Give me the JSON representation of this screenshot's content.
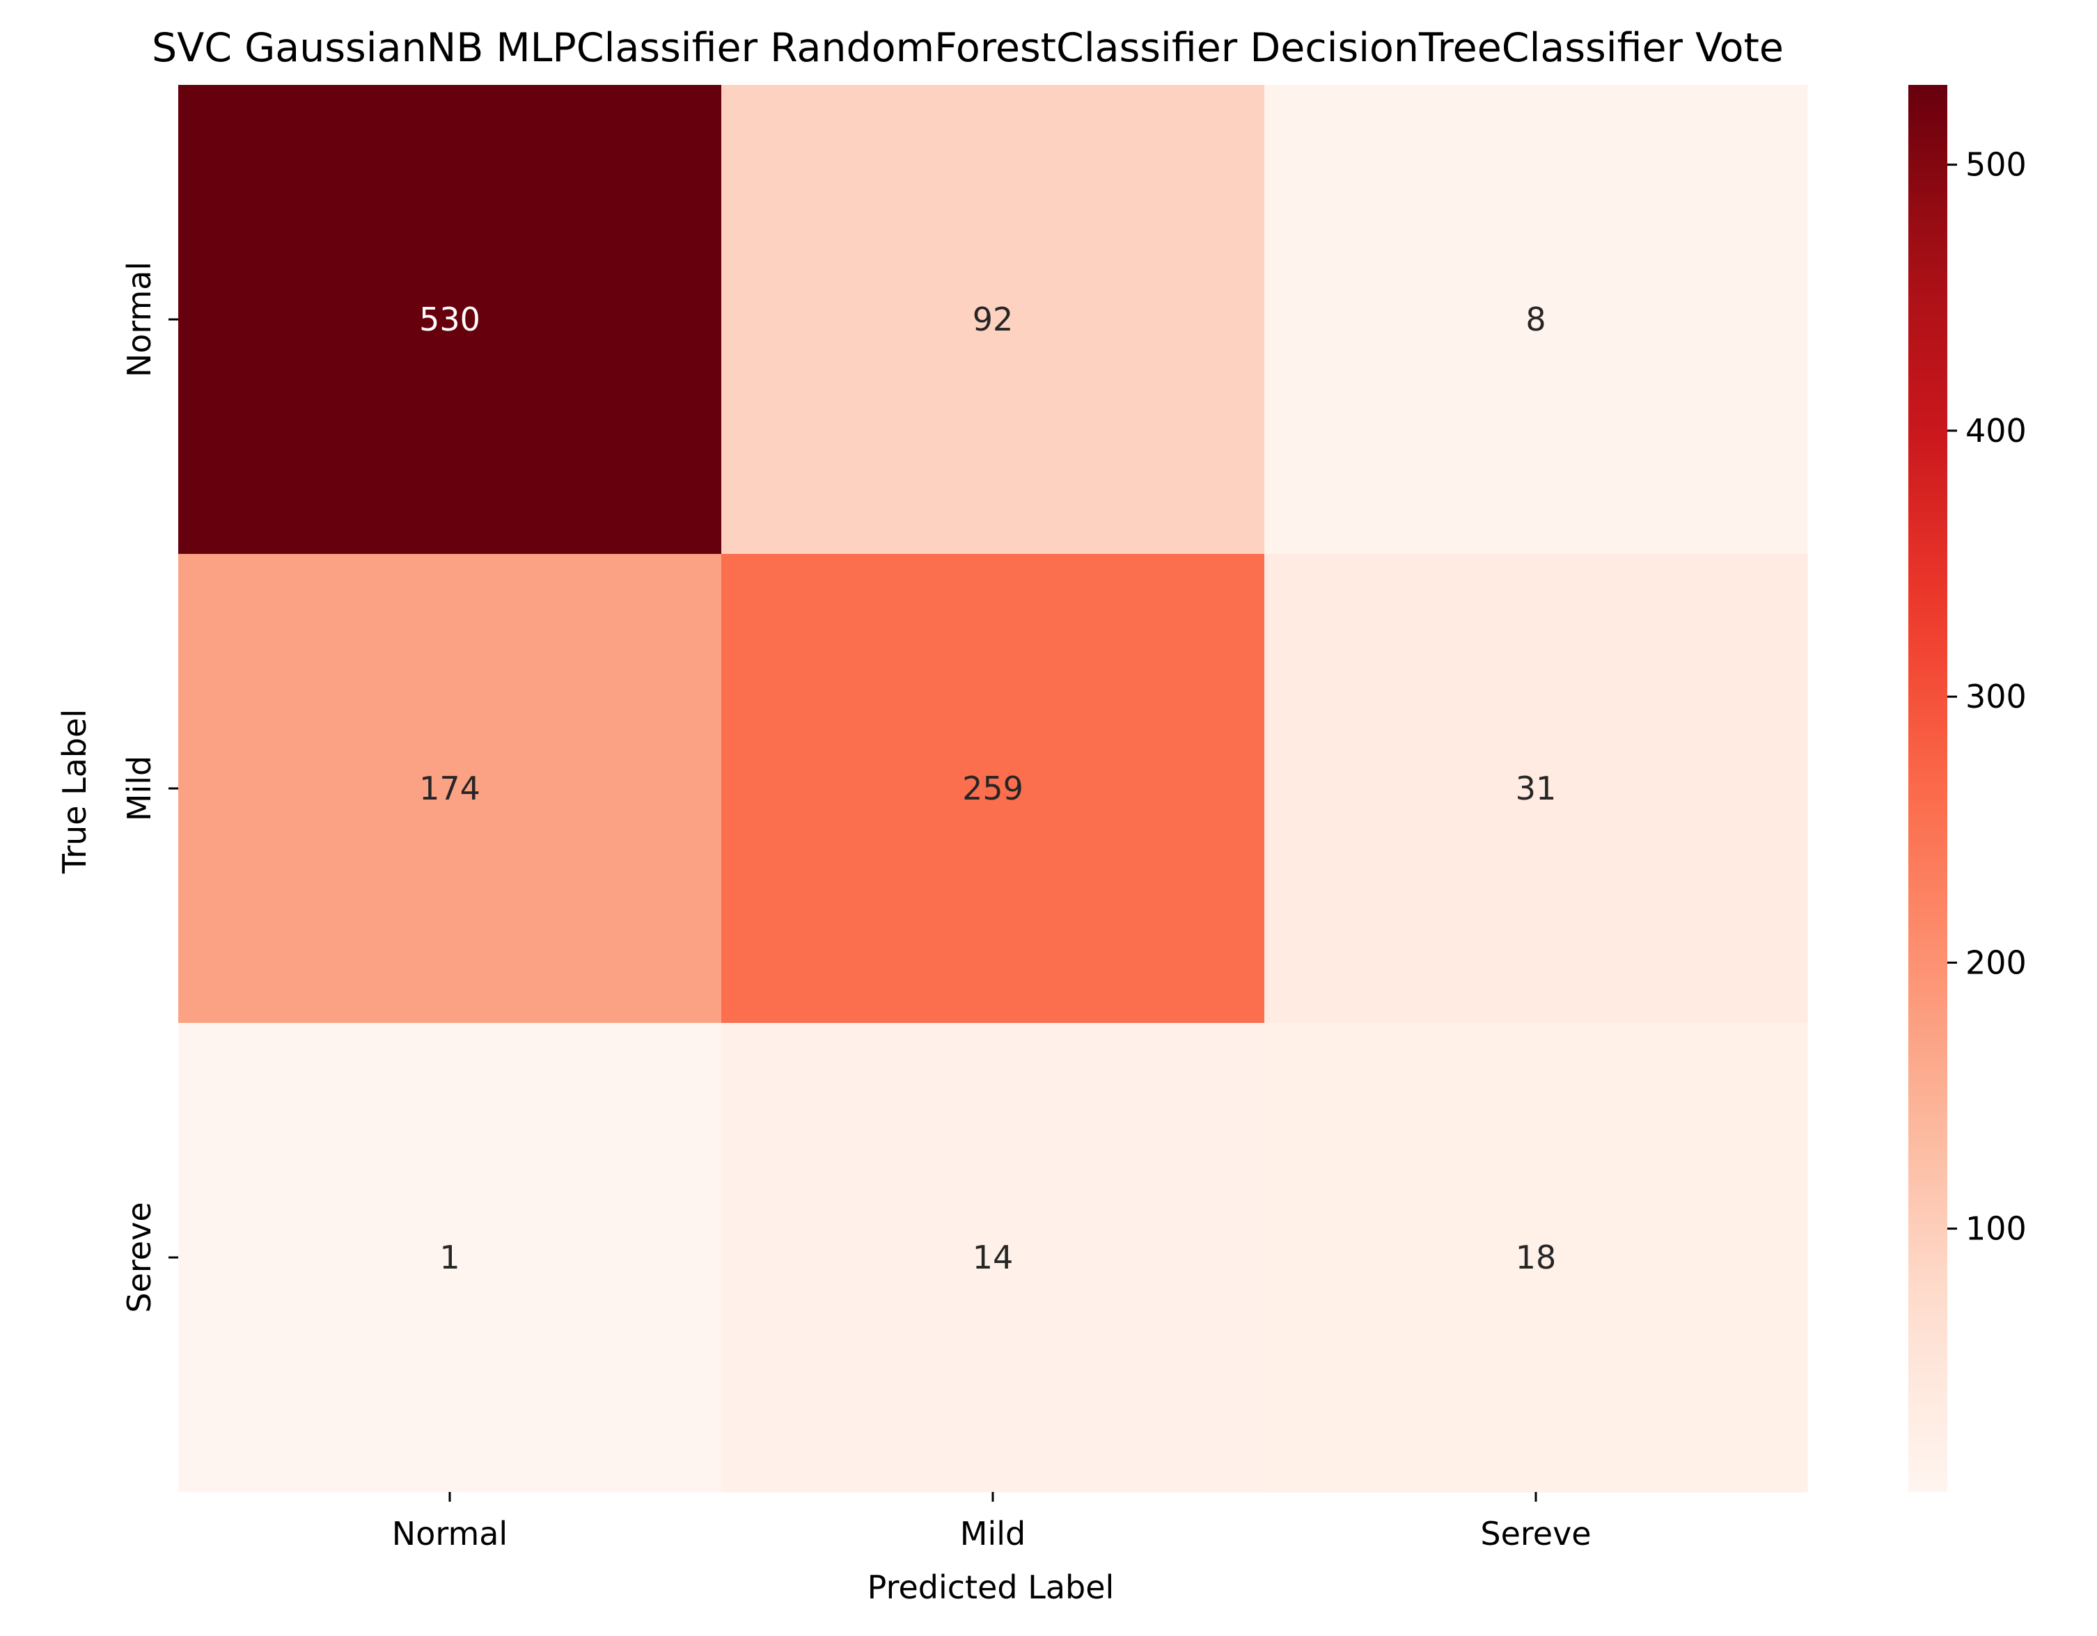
{
  "chart_data": {
    "type": "heatmap",
    "title": "SVC GaussianNB MLPClassifier RandomForestClassifier DecisionTreeClassifier Vote",
    "xlabel": "Predicted Label",
    "ylabel": "True Label",
    "x_categories": [
      "Normal",
      "Mild",
      "Sereve"
    ],
    "y_categories": [
      "Normal",
      "Mild",
      "Sereve"
    ],
    "values": [
      [
        530,
        92,
        8
      ],
      [
        174,
        259,
        31
      ],
      [
        1,
        14,
        18
      ]
    ],
    "colormap": "Reds",
    "vmin": 1,
    "vmax": 530,
    "colorbar_ticks": [
      100,
      200,
      300,
      400,
      500
    ],
    "grid": false
  }
}
